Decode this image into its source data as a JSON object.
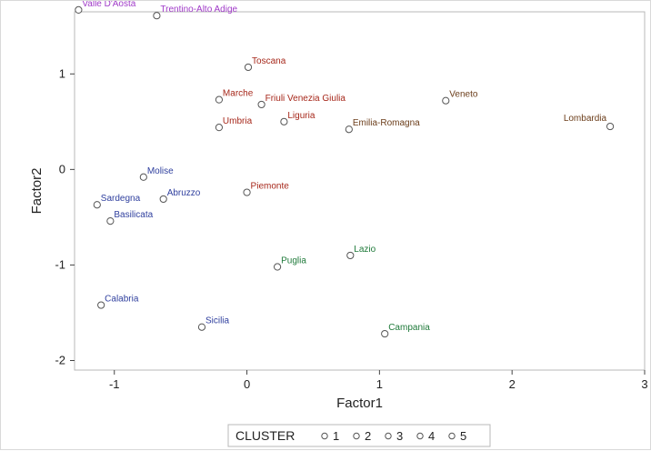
{
  "chart_data": {
    "type": "scatter",
    "xlabel": "Factor1",
    "ylabel": "Factor2",
    "xlim": [
      -1.3,
      3.0
    ],
    "ylim": [
      -2.1,
      1.65
    ],
    "x_ticks": [
      "-1",
      "0",
      "1",
      "2",
      "3"
    ],
    "y_ticks": [
      "-2",
      "-1",
      "0",
      "1"
    ],
    "x_tick_values": [
      -1,
      0,
      1,
      2,
      3
    ],
    "y_tick_values": [
      -2,
      -1,
      0,
      1
    ],
    "grid": false,
    "legend": {
      "title": "CLUSTER",
      "placement": "bottom-center",
      "entries": [
        {
          "label": "1",
          "color": "#2f3f9e"
        },
        {
          "label": "2",
          "color": "#a6271a"
        },
        {
          "label": "3",
          "color": "#1f7a3a"
        },
        {
          "label": "4",
          "color": "#6b3d1a"
        },
        {
          "label": "5",
          "color": "#a03ac8"
        }
      ]
    },
    "points": [
      {
        "name": "Valle D'Aosta",
        "x": -1.27,
        "y": 1.67,
        "cluster": "5"
      },
      {
        "name": "Trentino-Alto Adige",
        "x": -0.68,
        "y": 1.61,
        "cluster": "5"
      },
      {
        "name": "Toscana",
        "x": 0.01,
        "y": 1.07,
        "cluster": "2"
      },
      {
        "name": "Marche",
        "x": -0.21,
        "y": 0.73,
        "cluster": "2"
      },
      {
        "name": "Friuli Venezia Giulia",
        "x": 0.11,
        "y": 0.68,
        "cluster": "2"
      },
      {
        "name": "Liguria",
        "x": 0.28,
        "y": 0.5,
        "cluster": "2"
      },
      {
        "name": "Umbria",
        "x": -0.21,
        "y": 0.44,
        "cluster": "2"
      },
      {
        "name": "Piemonte",
        "x": 0.0,
        "y": -0.24,
        "cluster": "2"
      },
      {
        "name": "Emilia-Romagna",
        "x": 0.77,
        "y": 0.42,
        "cluster": "4"
      },
      {
        "name": "Veneto",
        "x": 1.5,
        "y": 0.72,
        "cluster": "4"
      },
      {
        "name": "Lombardia",
        "x": 2.74,
        "y": 0.45,
        "cluster": "4"
      },
      {
        "name": "Molise",
        "x": -0.78,
        "y": -0.08,
        "cluster": "1"
      },
      {
        "name": "Sardegna",
        "x": -1.13,
        "y": -0.37,
        "cluster": "1"
      },
      {
        "name": "Abruzzo",
        "x": -0.63,
        "y": -0.31,
        "cluster": "1"
      },
      {
        "name": "Basilicata",
        "x": -1.03,
        "y": -0.54,
        "cluster": "1"
      },
      {
        "name": "Calabria",
        "x": -1.1,
        "y": -1.42,
        "cluster": "1"
      },
      {
        "name": "Sicilia",
        "x": -0.34,
        "y": -1.65,
        "cluster": "1"
      },
      {
        "name": "Lazio",
        "x": 0.78,
        "y": -0.9,
        "cluster": "3"
      },
      {
        "name": "Puglia",
        "x": 0.23,
        "y": -1.02,
        "cluster": "3"
      },
      {
        "name": "Campania",
        "x": 1.04,
        "y": -1.72,
        "cluster": "3"
      }
    ]
  }
}
